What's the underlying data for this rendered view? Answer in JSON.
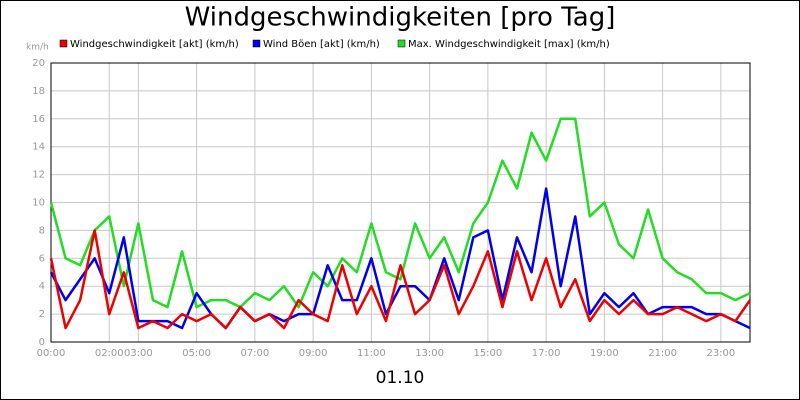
{
  "chart_data": {
    "type": "line",
    "title": "Windgeschwindigkeiten [pro Tag]",
    "y_unit": "km/h",
    "x_label": "01.10",
    "x": [
      0,
      0.5,
      1,
      1.5,
      2,
      2.5,
      3,
      3.5,
      4,
      4.5,
      5,
      5.5,
      6,
      6.5,
      7,
      7.5,
      8,
      8.5,
      9,
      9.5,
      10,
      10.5,
      11,
      11.5,
      12,
      12.5,
      13,
      13.5,
      14,
      14.5,
      15,
      15.5,
      16,
      16.5,
      17,
      17.5,
      18,
      18.5,
      19,
      19.5,
      20,
      20.5,
      21,
      21.5,
      22,
      22.5,
      23,
      23.5,
      24
    ],
    "series": [
      {
        "name": "Windgeschwindigkeit [akt] (km/h)",
        "color": "#ee0000",
        "values": [
          6,
          1,
          3,
          8,
          2,
          5,
          1,
          1.5,
          1,
          2,
          1.5,
          2,
          1,
          2.5,
          1.5,
          2,
          1,
          3,
          2,
          1.5,
          5.5,
          2,
          4,
          1.5,
          5.5,
          2,
          3,
          5.5,
          2,
          4,
          6.5,
          2.5,
          6.5,
          3,
          6,
          2.5,
          4.5,
          1.5,
          3,
          2,
          3,
          2,
          2,
          2.5,
          2,
          1.5,
          2,
          1.5,
          3
        ]
      },
      {
        "name": "Wind Böen [akt] (km/h)",
        "color": "#0000ee",
        "values": [
          5,
          3,
          4.5,
          6,
          3.5,
          7.5,
          1.5,
          1.5,
          1.5,
          1,
          3.5,
          2,
          1,
          2.5,
          1.5,
          2,
          1.5,
          2,
          2,
          5.5,
          3,
          3,
          6,
          2,
          4,
          4,
          3,
          6,
          3,
          7.5,
          8,
          3,
          7.5,
          5,
          11,
          4,
          9,
          2,
          3.5,
          2.5,
          3.5,
          2,
          2.5,
          2.5,
          2.5,
          2,
          2,
          1.5,
          1
        ]
      },
      {
        "name": "Max. Windgeschwindigkeit [max] (km/h)",
        "color": "#22dd22",
        "values": [
          10,
          6,
          5.5,
          8,
          9,
          4,
          8.5,
          3,
          2.5,
          6.5,
          2.5,
          3,
          3,
          2.5,
          3.5,
          3,
          4,
          2.5,
          5,
          4,
          6,
          5,
          8.5,
          5,
          4.5,
          8.5,
          6,
          7.5,
          5,
          8.5,
          10,
          13,
          11,
          15,
          13,
          16,
          16,
          9,
          10,
          7,
          6,
          9.5,
          6,
          5,
          4.5,
          3.5,
          3.5,
          3,
          3.5
        ]
      }
    ],
    "xlim": [
      0,
      24
    ],
    "xticks": [
      {
        "value": 0,
        "label": "00:00"
      },
      {
        "value": 2,
        "label": "02:00"
      },
      {
        "value": 3,
        "label": "03:00"
      },
      {
        "value": 5,
        "label": "05:00"
      },
      {
        "value": 7,
        "label": "07:00"
      },
      {
        "value": 9,
        "label": "09:00"
      },
      {
        "value": 11,
        "label": "11:00"
      },
      {
        "value": 13,
        "label": "13:00"
      },
      {
        "value": 15,
        "label": "15:00"
      },
      {
        "value": 17,
        "label": "17:00"
      },
      {
        "value": 19,
        "label": "19:00"
      },
      {
        "value": 21,
        "label": "21:00"
      },
      {
        "value": 23,
        "label": "23:00"
      }
    ],
    "ylim": [
      0,
      20
    ],
    "yticks": [
      0,
      2,
      4,
      6,
      8,
      10,
      12,
      14,
      16,
      18,
      20
    ],
    "grid": true
  }
}
